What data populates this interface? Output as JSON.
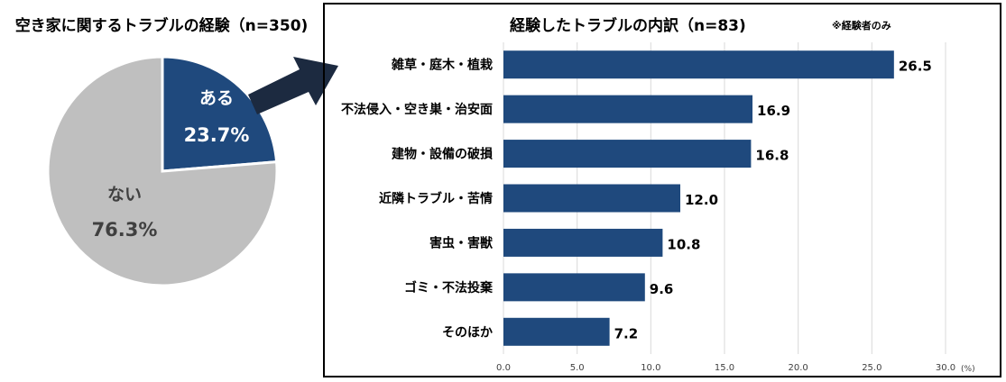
{
  "pie": {
    "title": "空き家に関するトラブルの経験（n=350)",
    "slices": [
      {
        "label": "ある",
        "value_label": "23.7%",
        "value": 23.7,
        "color": "#1F497D"
      },
      {
        "label": "ない",
        "value_label": "76.3%",
        "value": 76.3,
        "color": "#BFBFBF"
      }
    ]
  },
  "bar": {
    "title": "経験したトラブルの内訳（n=83)",
    "note": "※経験者のみ"
  },
  "chart_data": [
    {
      "type": "pie",
      "title": "空き家に関するトラブルの経験（n=350)",
      "categories": [
        "ある",
        "ない"
      ],
      "values": [
        23.7,
        76.3
      ],
      "colors": [
        "#1F497D",
        "#BFBFBF"
      ]
    },
    {
      "type": "bar",
      "orientation": "horizontal",
      "title": "経験したトラブルの内訳（n=83)",
      "categories": [
        "雑草・庭木・植栽",
        "不法侵入・空き巣・治安面",
        "建物・設備の破損",
        "近隣トラブル・苦情",
        "害虫・害獣",
        "ゴミ・不法投棄",
        "そのほか"
      ],
      "values": [
        26.5,
        16.9,
        16.8,
        12.0,
        10.8,
        9.6,
        7.2
      ],
      "value_labels": [
        "26.5",
        "16.9",
        "16.8",
        "12.0",
        "10.8",
        "9.6",
        "7.2"
      ],
      "xlim": [
        0,
        30
      ],
      "x_ticks": [
        "0.0",
        "5.0",
        "10.0",
        "15.0",
        "20.0",
        "25.0",
        "30.0"
      ],
      "x_unit": "(%)",
      "grid": true,
      "bar_color": "#1F497D"
    }
  ]
}
